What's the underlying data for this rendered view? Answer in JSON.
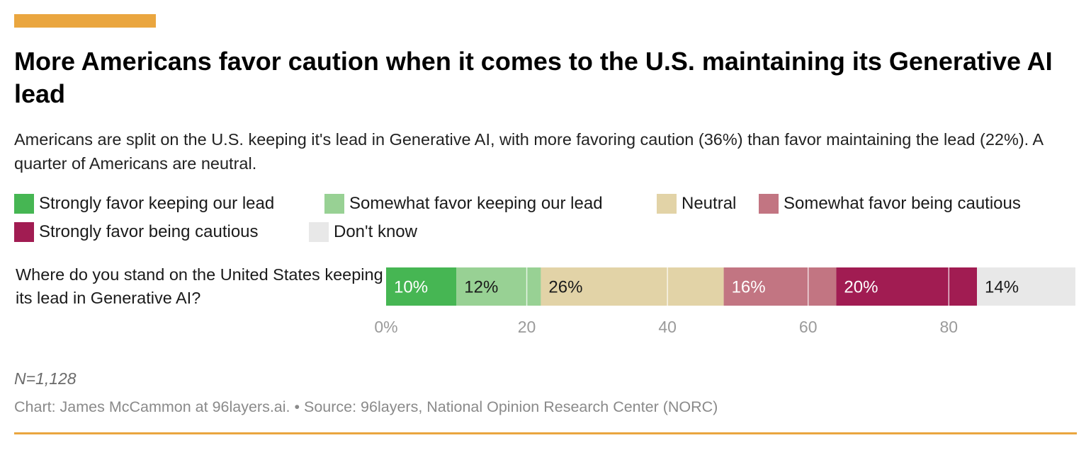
{
  "header": {
    "title": "More Americans favor caution when it comes to the U.S. maintaining its Generative AI lead",
    "subtitle": "Americans are split on the U.S. keeping it's lead in Generative AI, with more favoring caution (36%) than favor maintaining the lead (22%). A quarter of Americans are neutral."
  },
  "chart_data": {
    "type": "bar",
    "orientation": "horizontal",
    "stacked": true,
    "categories": [
      "Where do you stand on the United States keeping its lead in Generative AI?"
    ],
    "series": [
      {
        "name": "Strongly favor keeping our lead",
        "values": [
          10
        ],
        "label": "10%",
        "color": "#46b653",
        "label_color": "#ffffff"
      },
      {
        "name": "Somewhat favor keeping our lead",
        "values": [
          12
        ],
        "label": "12%",
        "color": "#98d194",
        "label_color": "#1a1a1a"
      },
      {
        "name": "Neutral",
        "values": [
          26
        ],
        "label": "26%",
        "color": "#e2d3a7",
        "label_color": "#1a1a1a"
      },
      {
        "name": "Somewhat favor being cautious",
        "values": [
          16
        ],
        "label": "16%",
        "color": "#c27582",
        "label_color": "#ffffff"
      },
      {
        "name": "Strongly favor being cautious",
        "values": [
          20
        ],
        "label": "20%",
        "color": "#a11c52",
        "label_color": "#ffffff"
      },
      {
        "name": "Don't know",
        "values": [
          14
        ],
        "label": "14%",
        "color": "#e8e8e8",
        "label_color": "#1a1a1a"
      }
    ],
    "x_ticks": [
      "0%",
      "20",
      "40",
      "60",
      "80"
    ],
    "x_tick_values": [
      0,
      20,
      40,
      60,
      80
    ],
    "xlim": [
      0,
      98
    ],
    "grid": true,
    "legend": "top"
  },
  "footer": {
    "n_note": "N=1,128",
    "source": "Chart: James McCammon at 96layers.ai. • Source: 96layers, National Opinion Research Center (NORC)"
  }
}
